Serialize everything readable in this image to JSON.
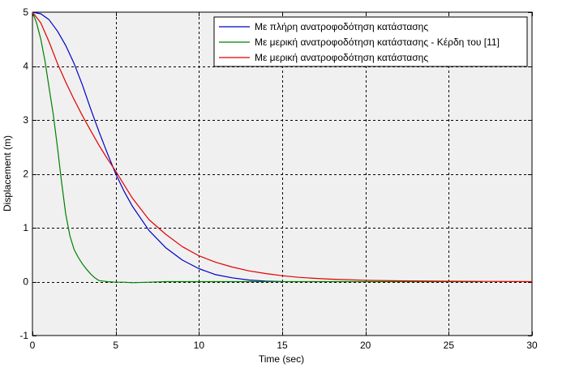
{
  "chart_data": {
    "type": "line",
    "title": "",
    "xlabel": "Time (sec)",
    "ylabel": "Displacement (m)",
    "xlim": [
      0,
      30
    ],
    "ylim": [
      -1,
      5
    ],
    "x_ticks": [
      0,
      5,
      10,
      15,
      20,
      25,
      30
    ],
    "y_ticks": [
      -1,
      0,
      1,
      2,
      3,
      4,
      5
    ],
    "grid": true,
    "legend_position": "top-right",
    "plot_background": "#f0f0f0",
    "series": [
      {
        "name": "Με πλήρη ανατροφοδότηση κατάστασης",
        "color": "#0000c8",
        "x": [
          0,
          0.5,
          1,
          1.5,
          2,
          2.5,
          3,
          3.5,
          4,
          4.5,
          5,
          5.5,
          6,
          7,
          8,
          9,
          10,
          11,
          12,
          13,
          14,
          15
        ],
        "y": [
          5,
          4.97,
          4.86,
          4.65,
          4.38,
          4.05,
          3.65,
          3.2,
          2.78,
          2.38,
          2.0,
          1.68,
          1.4,
          0.95,
          0.63,
          0.4,
          0.24,
          0.13,
          0.07,
          0.03,
          0.01,
          0.0
        ]
      },
      {
        "name": "Με μερική ανατροφοδότηση κατάστασης - Κέρδη του [11]",
        "color": "#008000",
        "x": [
          0,
          0.25,
          0.5,
          0.75,
          1,
          1.25,
          1.5,
          1.75,
          2,
          2.25,
          2.5,
          2.75,
          3,
          3.25,
          3.5,
          3.75,
          4,
          4.5,
          5,
          5.5,
          6,
          7,
          8,
          10,
          15,
          20,
          25,
          27
        ],
        "y": [
          5,
          4.8,
          4.5,
          4.1,
          3.6,
          3.1,
          2.5,
          1.85,
          1.25,
          0.85,
          0.6,
          0.45,
          0.33,
          0.23,
          0.14,
          0.07,
          0.02,
          0.0,
          -0.01,
          -0.01,
          -0.02,
          -0.01,
          0.0,
          0.0,
          0.0,
          0.0,
          0.0,
          0.0
        ]
      },
      {
        "name": "Με μερική ανατροφοδότηση κατάστασης",
        "color": "#e00000",
        "x": [
          0,
          0.5,
          1,
          1.5,
          2,
          2.5,
          3,
          3.5,
          4,
          4.5,
          5,
          5.5,
          6,
          7,
          8,
          9,
          10,
          11,
          12,
          13,
          14,
          15,
          16,
          17,
          18,
          20,
          22,
          25,
          27,
          30
        ],
        "y": [
          5,
          4.8,
          4.45,
          4.05,
          3.7,
          3.38,
          3.08,
          2.8,
          2.53,
          2.28,
          2.05,
          1.8,
          1.55,
          1.15,
          0.88,
          0.65,
          0.48,
          0.36,
          0.27,
          0.2,
          0.15,
          0.11,
          0.08,
          0.06,
          0.045,
          0.025,
          0.015,
          0.007,
          0.004,
          0.0
        ]
      }
    ]
  }
}
